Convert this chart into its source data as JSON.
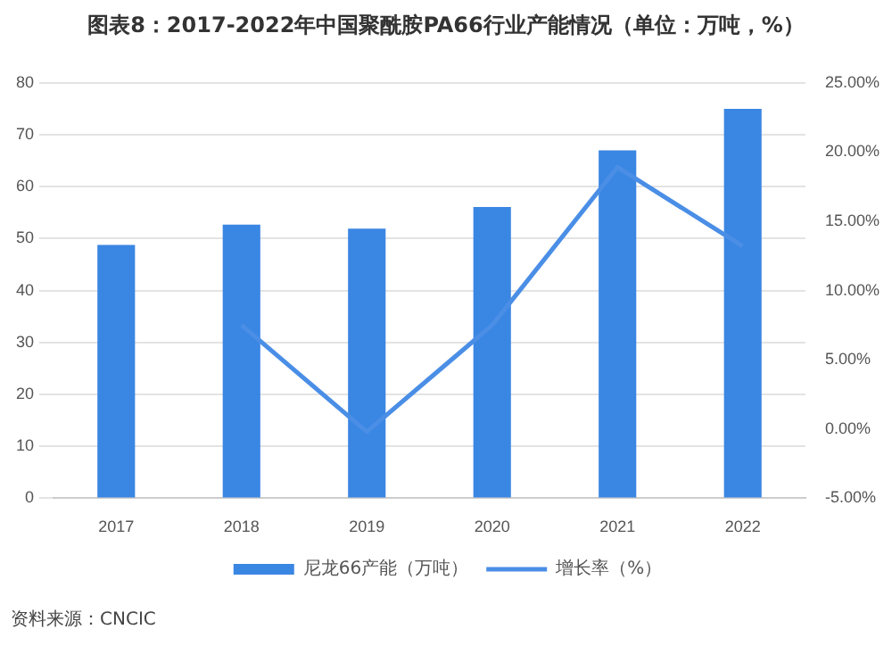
{
  "chart_data": {
    "type": "bar",
    "title": "图表8：2017-2022年中国聚酰胺PA66行业产能情况（单位：万吨，%）",
    "categories": [
      "2017",
      "2018",
      "2019",
      "2020",
      "2021",
      "2022"
    ],
    "series": [
      {
        "name": "尼龙66产能（万吨）",
        "color": "#3a86e3",
        "values": [
          48.8,
          52.7,
          51.9,
          56.1,
          67,
          75
        ]
      },
      {
        "name": "增长率（%）",
        "type": "line",
        "axis": "y2",
        "color": "#4a8ee6",
        "values": [
          null,
          7.5,
          -0.2,
          7.5,
          18.9,
          13.2
        ]
      }
    ],
    "ylim": [
      0,
      80
    ],
    "yticks": [
      0,
      10,
      20,
      30,
      40,
      50,
      60,
      70,
      80
    ],
    "y2lim": [
      -5,
      25
    ],
    "y2ticks": [
      {
        "value": -5,
        "label": "-5.00%"
      },
      {
        "value": 0,
        "label": "0.00%"
      },
      {
        "value": 5,
        "label": "5.00%"
      },
      {
        "value": 10,
        "label": "10.00%"
      },
      {
        "value": 15,
        "label": "15.00%"
      },
      {
        "value": 20,
        "label": "20.00%"
      },
      {
        "value": 25,
        "label": "25.00%"
      }
    ],
    "grid": "y",
    "legend": "bottom",
    "marker": "none",
    "line_style": "solid",
    "annotations": [
      "资料来源：CNCIC"
    ]
  }
}
